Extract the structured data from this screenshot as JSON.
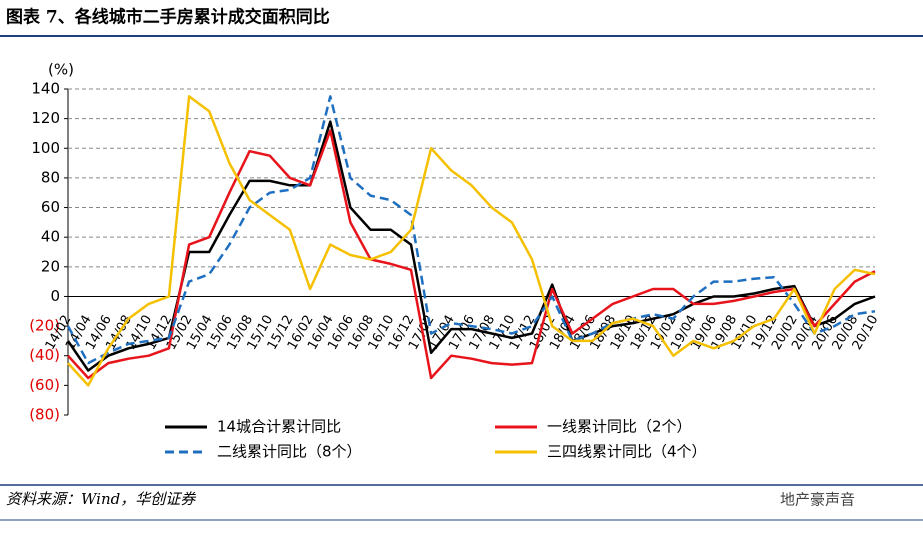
{
  "title": "图表 7、各线城市二手房累计成交面积同比",
  "source": "资料来源：Wind，华创证券",
  "watermark": "地产豪声音",
  "chart_data": {
    "type": "line",
    "y_unit_label": "(%)",
    "categories": [
      "14/02",
      "14/04",
      "14/06",
      "14/08",
      "14/10",
      "14/12",
      "15/02",
      "15/04",
      "15/06",
      "15/08",
      "15/10",
      "15/12",
      "16/02",
      "16/04",
      "16/06",
      "16/08",
      "16/10",
      "16/12",
      "17/02",
      "17/04",
      "17/06",
      "17/08",
      "17/10",
      "17/12",
      "18/02",
      "18/04",
      "18/06",
      "18/08",
      "18/10",
      "18/12",
      "19/02",
      "19/04",
      "19/06",
      "19/08",
      "19/10",
      "19/12",
      "20/02",
      "20/04",
      "20/06",
      "20/08",
      "20/10"
    ],
    "ylim": [
      -80,
      140
    ],
    "yticks": [
      {
        "value": -80,
        "label": "(80)"
      },
      {
        "value": -60,
        "label": "(60)"
      },
      {
        "value": -40,
        "label": "(40)"
      },
      {
        "value": -20,
        "label": "(20)"
      },
      0,
      20,
      40,
      60,
      80,
      100,
      120,
      140
    ],
    "negative_tick_color": "#e00000",
    "grid": true,
    "series": [
      {
        "name": "14城合计累计同比",
        "color": "#000000",
        "dash": false,
        "values": [
          -30,
          -50,
          -40,
          -35,
          -32,
          -28,
          30,
          30,
          55,
          78,
          78,
          75,
          75,
          118,
          60,
          45,
          45,
          35,
          -38,
          -22,
          -22,
          -25,
          -28,
          -25,
          8,
          -30,
          -25,
          -20,
          -18,
          -15,
          -12,
          -5,
          0,
          0,
          2,
          5,
          7,
          -20,
          -15,
          -5,
          0
        ]
      },
      {
        "name": "一线累计同比（2个）",
        "color": "#e8141c",
        "dash": false,
        "values": [
          -40,
          -55,
          -45,
          -42,
          -40,
          -35,
          35,
          40,
          70,
          98,
          95,
          80,
          75,
          112,
          50,
          25,
          22,
          18,
          -55,
          -40,
          -42,
          -45,
          -46,
          -45,
          5,
          -25,
          -15,
          -5,
          0,
          5,
          5,
          -5,
          -5,
          -3,
          0,
          3,
          5,
          -20,
          -5,
          10,
          17
        ]
      },
      {
        "name": "二线累计同比（8个）",
        "color": "#1f6fc0",
        "dash": true,
        "values": [
          -20,
          -45,
          -38,
          -32,
          -30,
          -28,
          10,
          15,
          35,
          60,
          70,
          72,
          80,
          135,
          80,
          68,
          65,
          55,
          -25,
          -18,
          -20,
          -22,
          -25,
          -20,
          0,
          -30,
          -25,
          -18,
          -15,
          -12,
          -15,
          0,
          10,
          10,
          12,
          13,
          -5,
          -25,
          -20,
          -12,
          -10
        ]
      },
      {
        "name": "三四线累计同比（4个）",
        "color": "#f5c000",
        "dash": false,
        "values": [
          -45,
          -60,
          -35,
          -15,
          -5,
          0,
          135,
          125,
          90,
          65,
          55,
          45,
          5,
          35,
          28,
          25,
          30,
          45,
          100,
          85,
          75,
          60,
          50,
          25,
          -20,
          -30,
          -30,
          -18,
          -15,
          -20,
          -40,
          -30,
          -35,
          -30,
          -20,
          -15,
          5,
          -25,
          5,
          18,
          15
        ]
      }
    ]
  }
}
